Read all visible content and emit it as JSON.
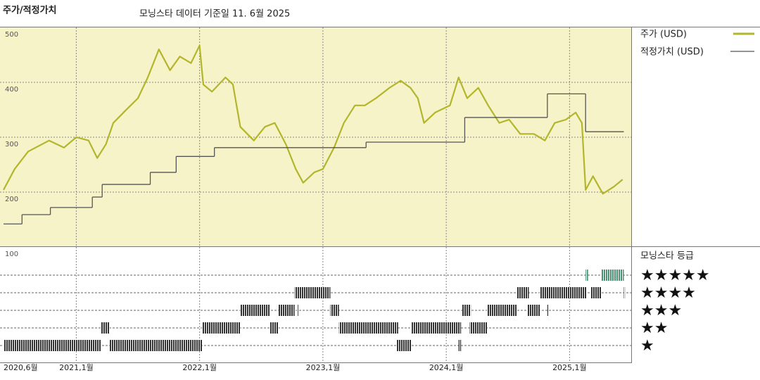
{
  "chart_data": {
    "type": "line",
    "title": "주가/적정가치",
    "subtitle": "모닝스타 데이터 기준일 11. 6월 2025",
    "xlim": [
      2020.41,
      2025.5
    ],
    "xticks": [
      {
        "value": 2020.41,
        "label": "2020,6월"
      },
      {
        "value": 2021,
        "label": "2021,1월"
      },
      {
        "value": 2022,
        "label": "2022,1월"
      },
      {
        "value": 2023,
        "label": "2023,1월"
      },
      {
        "value": 2024,
        "label": "2024,1월"
      },
      {
        "value": 2025,
        "label": "2025,1월"
      }
    ],
    "ylim": [
      100,
      500
    ],
    "yticks": [
      100,
      200,
      300,
      400,
      500
    ],
    "grid": true,
    "legend": "right",
    "series": [
      {
        "name": "주가 (USD)",
        "color": "#b3b52c",
        "style": "line",
        "x": [
          2020.41,
          2020.5,
          2020.61,
          2020.78,
          2020.9,
          2021.0,
          2021.1,
          2021.17,
          2021.24,
          2021.3,
          2021.41,
          2021.5,
          2021.58,
          2021.67,
          2021.76,
          2021.84,
          2021.93,
          2022.0,
          2022.03,
          2022.1,
          2022.21,
          2022.27,
          2022.33,
          2022.44,
          2022.53,
          2022.61,
          2022.7,
          2022.78,
          2022.84,
          2022.93,
          2023.0,
          2023.09,
          2023.17,
          2023.26,
          2023.34,
          2023.43,
          2023.54,
          2023.63,
          2023.71,
          2023.77,
          2023.82,
          2023.91,
          2024.03,
          2024.1,
          2024.17,
          2024.26,
          2024.34,
          2024.43,
          2024.51,
          2024.6,
          2024.71,
          2024.8,
          2024.88,
          2024.97,
          2025.05,
          2025.1,
          2025.13,
          2025.19,
          2025.27,
          2025.36,
          2025.43
        ],
        "values": [
          204,
          242,
          274,
          294,
          281,
          300,
          294,
          262,
          287,
          326,
          351,
          371,
          409,
          460,
          422,
          447,
          435,
          467,
          396,
          383,
          409,
          396,
          319,
          294,
          319,
          326,
          287,
          242,
          217,
          236,
          242,
          281,
          326,
          358,
          358,
          371,
          390,
          403,
          390,
          371,
          326,
          345,
          358,
          409,
          371,
          390,
          358,
          326,
          332,
          306,
          306,
          294,
          326,
          332,
          345,
          326,
          204,
          229,
          197,
          210,
          223
        ]
      },
      {
        "name": "적정가치 (USD)",
        "color": "#555555",
        "style": "step",
        "x": [
          2020.41,
          2020.56,
          2020.79,
          2021.13,
          2021.21,
          2021.6,
          2021.81,
          2022.12,
          2023.35,
          2024.15,
          2024.82,
          2025.13,
          2025.44
        ],
        "values": [
          142,
          159,
          172,
          191,
          214,
          236,
          265,
          281,
          291,
          336,
          379,
          310,
          310
        ]
      }
    ],
    "ratings": {
      "title": "모닝스타 등급",
      "color": "#333333",
      "top_color": "#4a8f72",
      "levels": [
        {
          "stars": 5,
          "label": "★★★★★"
        },
        {
          "stars": 4,
          "label": "★★★★"
        },
        {
          "stars": 3,
          "label": "★★★"
        },
        {
          "stars": 2,
          "label": "★★"
        },
        {
          "stars": 1,
          "label": "★"
        }
      ],
      "periods": [
        {
          "stars": 1,
          "start": 2020.41,
          "end": 2021.2
        },
        {
          "stars": 1,
          "start": 2021.27,
          "end": 2022.02
        },
        {
          "stars": 1,
          "start": 2023.6,
          "end": 2023.72
        },
        {
          "stars": 1,
          "start": 2024.1,
          "end": 2024.12
        },
        {
          "stars": 2,
          "start": 2021.2,
          "end": 2021.27
        },
        {
          "stars": 2,
          "start": 2022.02,
          "end": 2022.33
        },
        {
          "stars": 2,
          "start": 2022.57,
          "end": 2022.64
        },
        {
          "stars": 2,
          "start": 2023.13,
          "end": 2023.61
        },
        {
          "stars": 2,
          "start": 2023.72,
          "end": 2024.12
        },
        {
          "stars": 2,
          "start": 2024.19,
          "end": 2024.33
        },
        {
          "stars": 3,
          "start": 2022.33,
          "end": 2022.57
        },
        {
          "stars": 3,
          "start": 2022.64,
          "end": 2022.77
        },
        {
          "stars": 3,
          "start": 2022.79,
          "end": 2022.8
        },
        {
          "stars": 3,
          "start": 2023.06,
          "end": 2023.13
        },
        {
          "stars": 3,
          "start": 2024.13,
          "end": 2024.2
        },
        {
          "stars": 3,
          "start": 2024.33,
          "end": 2024.57
        },
        {
          "stars": 3,
          "start": 2024.66,
          "end": 2024.76
        },
        {
          "stars": 3,
          "start": 2024.82,
          "end": 2024.83
        },
        {
          "stars": 4,
          "start": 2022.77,
          "end": 2023.06
        },
        {
          "stars": 4,
          "start": 2024.57,
          "end": 2024.67
        },
        {
          "stars": 4,
          "start": 2024.76,
          "end": 2025.14
        },
        {
          "stars": 4,
          "start": 2025.17,
          "end": 2025.26
        },
        {
          "stars": 4,
          "start": 2025.44,
          "end": 2025.45
        },
        {
          "stars": 5,
          "start": 2025.13,
          "end": 2025.15
        },
        {
          "stars": 5,
          "start": 2025.26,
          "end": 2025.44
        }
      ]
    }
  }
}
